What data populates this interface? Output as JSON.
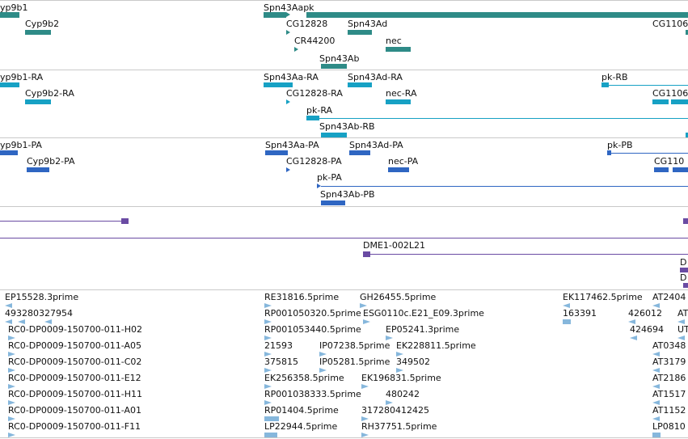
{
  "colors": {
    "gene": "#2e8b87",
    "transcript": "#17a1c4",
    "protein": "#2f66c2",
    "purple": "#6a4ba3",
    "est": "#86b7dc",
    "separator": "#c9c9c9"
  },
  "tracks": {
    "genes": {
      "labels": [
        "yp9b1",
        "Spn43Aapk",
        "Cyp9b2",
        "CG12828",
        "Spn43Ad",
        "CG1106",
        "CR44200",
        "nec",
        "Spn43Ab"
      ]
    },
    "transcripts": {
      "labels": [
        "yp9b1-RA",
        "Spn43Aa-RA",
        "Spn43Ad-RA",
        "pk-RB",
        "Cyp9b2-RA",
        "CG12828-RA",
        "nec-RA",
        "CG1106",
        "pk-RA",
        "Spn43Ab-RB"
      ]
    },
    "proteins": {
      "labels": [
        "yp9b1-PA",
        "Spn43Aa-PA",
        "Spn43Ad-PA",
        "pk-PB",
        "Cyp9b2-PA",
        "CG12828-PA",
        "nec-PA",
        "CG110",
        "pk-PA",
        "Spn43Ab-PB"
      ]
    },
    "clones": {
      "labels": [
        "DME1-002L21",
        "D",
        "D"
      ]
    },
    "ests": {
      "col1": [
        "EP15528.3prime",
        "493280327954",
        "RC0-DP0009-150700-011-H02",
        "RC0-DP0009-150700-011-A05",
        "RC0-DP0009-150700-011-C02",
        "RC0-DP0009-150700-011-E12",
        "RC0-DP0009-150700-011-H11",
        "RC0-DP0009-150700-011-A01",
        "RC0-DP0009-150700-011-F11"
      ],
      "col2": [
        "RE31816.5prime",
        "RP001050320.5prime",
        "RP001053440.5prime",
        "21593",
        "375815",
        "EK256358.5prime",
        "RP001038333.5prime",
        "RP01404.5prime",
        "LP22944.5prime"
      ],
      "col3": [
        "GH26455.5prime",
        "ESG0110c.E21_E09.3prime",
        "EP05241.3prime",
        "IP07238.5prime",
        "IP05281.5prime",
        "EK196831.5prime",
        "480242",
        "317280412425",
        "RH37751.5prime"
      ],
      "col3b": [
        "EK228811.5prime",
        "349502"
      ],
      "col4": [
        "EK117462.5prime",
        "163391"
      ],
      "col5": [
        "AT2404",
        "426012",
        "424694"
      ],
      "col5b": [
        "AT",
        "UT"
      ],
      "col6": [
        "AT0348",
        "AT3179",
        "AT2186",
        "AT1517",
        "AT1152",
        "LP0810"
      ]
    }
  }
}
